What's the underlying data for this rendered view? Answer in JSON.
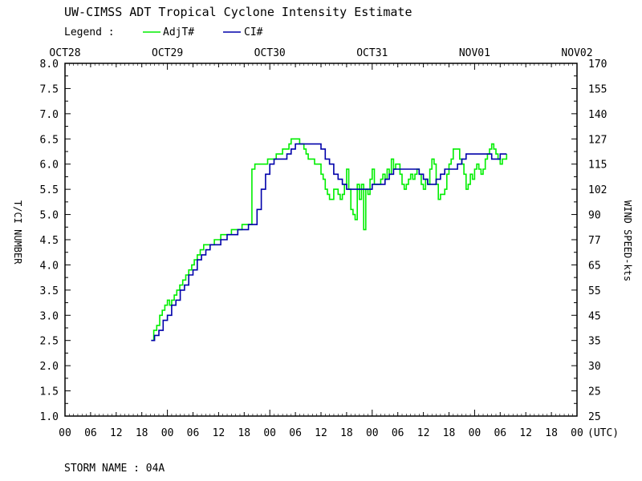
{
  "chart_data": {
    "type": "line",
    "title": "UW-CIMSS ADT Tropical Cyclone Intensity Estimate",
    "legend": {
      "label": "Legend :",
      "placement": "top-left",
      "entries": [
        "AdjT#",
        "CI#"
      ]
    },
    "top_axis": {
      "date_labels": [
        "OCT28",
        "OCT29",
        "OCT30",
        "OCT31",
        "NOV01",
        "NOV02"
      ]
    },
    "x_axis": {
      "unit_label": "(UTC)",
      "tick_labels": [
        "00",
        "06",
        "12",
        "18",
        "00",
        "06",
        "12",
        "18",
        "00",
        "06",
        "12",
        "18",
        "00",
        "06",
        "12",
        "18",
        "00",
        "06",
        "12",
        "18",
        "00"
      ],
      "xlim_hours_from_oct28_00": [
        0,
        120
      ]
    },
    "left_axis": {
      "label": "T/CI NUMBER",
      "ticks": [
        "8.0",
        "7.5",
        "7.0",
        "6.5",
        "6.0",
        "5.5",
        "5.0",
        "4.5",
        "4.0",
        "3.5",
        "3.0",
        "2.5",
        "2.0",
        "1.5",
        "1.0"
      ],
      "ylim": [
        1.0,
        8.0
      ]
    },
    "right_axis": {
      "label": "WIND SPEED-kts",
      "ticks": [
        "170",
        "155",
        "140",
        "127",
        "115",
        "102",
        "90",
        "77",
        "65",
        "55",
        "45",
        "35",
        "30",
        "25",
        "25"
      ]
    },
    "footer": "STORM NAME : 04A",
    "series": [
      {
        "name": "AdjT#",
        "color": "#00ee00",
        "points": [
          [
            20.2,
            2.5
          ],
          [
            20.8,
            2.7
          ],
          [
            21.5,
            2.8
          ],
          [
            22.2,
            3.0
          ],
          [
            22.8,
            3.1
          ],
          [
            23.4,
            3.2
          ],
          [
            24.0,
            3.3
          ],
          [
            24.5,
            3.2
          ],
          [
            25.0,
            3.3
          ],
          [
            25.6,
            3.4
          ],
          [
            26.2,
            3.5
          ],
          [
            26.9,
            3.6
          ],
          [
            27.6,
            3.7
          ],
          [
            28.3,
            3.8
          ],
          [
            29.0,
            3.9
          ],
          [
            29.7,
            4.0
          ],
          [
            30.3,
            4.1
          ],
          [
            31.0,
            4.2
          ],
          [
            31.7,
            4.3
          ],
          [
            32.5,
            4.4
          ],
          [
            34.0,
            4.4
          ],
          [
            35.0,
            4.5
          ],
          [
            36.5,
            4.6
          ],
          [
            38.0,
            4.6
          ],
          [
            39.0,
            4.7
          ],
          [
            40.5,
            4.7
          ],
          [
            41.5,
            4.8
          ],
          [
            43.5,
            4.8
          ],
          [
            43.8,
            5.9
          ],
          [
            44.5,
            6.0
          ],
          [
            46.5,
            6.0
          ],
          [
            47.5,
            6.1
          ],
          [
            48.5,
            6.1
          ],
          [
            49.5,
            6.2
          ],
          [
            50.5,
            6.2
          ],
          [
            51.0,
            6.3
          ],
          [
            52.0,
            6.3
          ],
          [
            52.5,
            6.4
          ],
          [
            53.0,
            6.5
          ],
          [
            54.5,
            6.5
          ],
          [
            55.0,
            6.4
          ],
          [
            56.0,
            6.3
          ],
          [
            56.5,
            6.2
          ],
          [
            57.0,
            6.1
          ],
          [
            58.0,
            6.1
          ],
          [
            58.5,
            6.0
          ],
          [
            59.5,
            6.0
          ],
          [
            60.0,
            5.8
          ],
          [
            60.5,
            5.7
          ],
          [
            61.0,
            5.5
          ],
          [
            61.5,
            5.4
          ],
          [
            62.0,
            5.3
          ],
          [
            63.0,
            5.5
          ],
          [
            64.0,
            5.4
          ],
          [
            64.5,
            5.3
          ],
          [
            65.0,
            5.4
          ],
          [
            65.5,
            5.6
          ],
          [
            66.0,
            5.9
          ],
          [
            66.5,
            5.5
          ],
          [
            67.0,
            5.1
          ],
          [
            67.5,
            5.0
          ],
          [
            68.0,
            4.9
          ],
          [
            68.5,
            5.6
          ],
          [
            69.0,
            5.3
          ],
          [
            69.5,
            5.6
          ],
          [
            70.0,
            4.7
          ],
          [
            70.5,
            5.5
          ],
          [
            71.0,
            5.4
          ],
          [
            71.5,
            5.7
          ],
          [
            72.0,
            5.9
          ],
          [
            72.5,
            5.6
          ],
          [
            73.0,
            5.6
          ],
          [
            74.0,
            5.7
          ],
          [
            74.5,
            5.8
          ],
          [
            75.0,
            5.7
          ],
          [
            75.5,
            5.9
          ],
          [
            76.0,
            5.8
          ],
          [
            76.5,
            6.1
          ],
          [
            77.0,
            5.9
          ],
          [
            77.5,
            6.0
          ],
          [
            78.0,
            6.0
          ],
          [
            78.5,
            5.8
          ],
          [
            79.0,
            5.6
          ],
          [
            79.5,
            5.5
          ],
          [
            80.0,
            5.6
          ],
          [
            80.5,
            5.7
          ],
          [
            81.0,
            5.8
          ],
          [
            81.5,
            5.7
          ],
          [
            82.0,
            5.8
          ],
          [
            82.5,
            5.9
          ],
          [
            83.0,
            5.8
          ],
          [
            83.5,
            5.6
          ],
          [
            84.0,
            5.5
          ],
          [
            84.5,
            5.7
          ],
          [
            85.0,
            5.6
          ],
          [
            85.5,
            5.9
          ],
          [
            86.0,
            6.1
          ],
          [
            86.5,
            6.0
          ],
          [
            87.0,
            5.6
          ],
          [
            87.5,
            5.3
          ],
          [
            88.0,
            5.4
          ],
          [
            88.5,
            5.4
          ],
          [
            89.0,
            5.5
          ],
          [
            89.5,
            5.8
          ],
          [
            90.0,
            6.0
          ],
          [
            90.5,
            6.1
          ],
          [
            91.0,
            6.3
          ],
          [
            92.0,
            6.3
          ],
          [
            92.5,
            6.1
          ],
          [
            93.0,
            6.0
          ],
          [
            93.5,
            5.8
          ],
          [
            94.0,
            5.5
          ],
          [
            94.5,
            5.6
          ],
          [
            95.0,
            5.8
          ],
          [
            95.5,
            5.7
          ],
          [
            96.0,
            5.9
          ],
          [
            96.5,
            6.0
          ],
          [
            97.0,
            5.9
          ],
          [
            97.5,
            5.8
          ],
          [
            98.0,
            5.9
          ],
          [
            98.5,
            6.1
          ],
          [
            99.0,
            6.2
          ],
          [
            99.5,
            6.3
          ],
          [
            100.0,
            6.4
          ],
          [
            100.5,
            6.3
          ],
          [
            101.0,
            6.2
          ],
          [
            101.5,
            6.1
          ],
          [
            102.0,
            6.0
          ],
          [
            102.5,
            6.1
          ],
          [
            103.0,
            6.1
          ],
          [
            103.5,
            6.2
          ]
        ]
      },
      {
        "name": "CI#",
        "color": "#0000aa",
        "points": [
          [
            20.2,
            2.5
          ],
          [
            21.0,
            2.6
          ],
          [
            22.0,
            2.7
          ],
          [
            23.0,
            2.9
          ],
          [
            24.0,
            3.0
          ],
          [
            25.0,
            3.2
          ],
          [
            26.0,
            3.3
          ],
          [
            27.0,
            3.5
          ],
          [
            28.0,
            3.6
          ],
          [
            29.0,
            3.8
          ],
          [
            30.0,
            3.9
          ],
          [
            31.0,
            4.1
          ],
          [
            32.0,
            4.2
          ],
          [
            33.0,
            4.3
          ],
          [
            34.0,
            4.4
          ],
          [
            35.5,
            4.4
          ],
          [
            36.5,
            4.5
          ],
          [
            38.0,
            4.6
          ],
          [
            39.5,
            4.6
          ],
          [
            40.5,
            4.7
          ],
          [
            42.0,
            4.7
          ],
          [
            43.0,
            4.8
          ],
          [
            44.0,
            4.8
          ],
          [
            45.0,
            5.1
          ],
          [
            46.0,
            5.5
          ],
          [
            47.0,
            5.8
          ],
          [
            48.0,
            6.0
          ],
          [
            49.0,
            6.1
          ],
          [
            51.0,
            6.1
          ],
          [
            52.0,
            6.2
          ],
          [
            53.0,
            6.3
          ],
          [
            54.0,
            6.4
          ],
          [
            59.0,
            6.4
          ],
          [
            60.0,
            6.3
          ],
          [
            61.0,
            6.1
          ],
          [
            62.0,
            6.0
          ],
          [
            63.0,
            5.8
          ],
          [
            64.0,
            5.7
          ],
          [
            65.0,
            5.6
          ],
          [
            66.0,
            5.5
          ],
          [
            71.0,
            5.5
          ],
          [
            72.0,
            5.6
          ],
          [
            74.0,
            5.6
          ],
          [
            75.0,
            5.7
          ],
          [
            76.0,
            5.8
          ],
          [
            77.0,
            5.9
          ],
          [
            82.0,
            5.9
          ],
          [
            83.0,
            5.8
          ],
          [
            84.0,
            5.7
          ],
          [
            85.0,
            5.6
          ],
          [
            86.0,
            5.6
          ],
          [
            87.0,
            5.7
          ],
          [
            88.0,
            5.8
          ],
          [
            89.0,
            5.9
          ],
          [
            91.0,
            5.9
          ],
          [
            92.0,
            6.0
          ],
          [
            93.0,
            6.1
          ],
          [
            94.0,
            6.2
          ],
          [
            99.0,
            6.2
          ],
          [
            100.0,
            6.1
          ],
          [
            101.0,
            6.1
          ],
          [
            102.0,
            6.2
          ],
          [
            103.5,
            6.2
          ]
        ]
      }
    ]
  }
}
